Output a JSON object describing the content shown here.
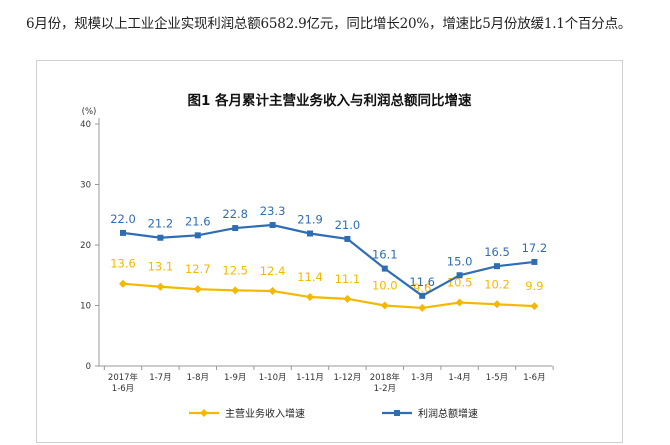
{
  "caption": "6月份，规模以上工业企业实现利润总额6582.9亿元，同比增长20%，增速比5月份放缓1.1个百分点。",
  "chart_data": {
    "type": "line",
    "title": "图1  各月累计主营业务收入与利润总额同比增速",
    "ylabel": "(%)",
    "ylim": [
      0,
      40
    ],
    "yticks": [
      0,
      10,
      20,
      30,
      40
    ],
    "grid": false,
    "legend_position": "bottom",
    "categories": [
      [
        "2017年",
        "1-6月"
      ],
      [
        "1-7月"
      ],
      [
        "1-8月"
      ],
      [
        "1-9月"
      ],
      [
        "1-10月"
      ],
      [
        "1-11月"
      ],
      [
        "1-12月"
      ],
      [
        "2018年",
        "1-2月"
      ],
      [
        "1-3月"
      ],
      [
        "1-4月"
      ],
      [
        "1-5月"
      ],
      [
        "1-6月"
      ]
    ],
    "series": [
      {
        "name": "主营业务收入增速",
        "color": "#F5B800",
        "marker": "diamond",
        "values": [
          13.6,
          13.1,
          12.7,
          12.5,
          12.4,
          11.4,
          11.1,
          10.0,
          9.6,
          10.5,
          10.2,
          9.9
        ],
        "labels": [
          "13.6",
          "13.1",
          "12.7",
          "12.5",
          "12.4",
          "11.4",
          "11.1",
          "10.0",
          "9.6",
          "10.5",
          "10.2",
          "9.9"
        ]
      },
      {
        "name": "利润总额增速",
        "color": "#2E6DB4",
        "marker": "square",
        "values": [
          22.0,
          21.2,
          21.6,
          22.8,
          23.3,
          21.9,
          21.0,
          16.1,
          11.6,
          15.0,
          16.5,
          17.2
        ],
        "labels": [
          "22.0",
          "21.2",
          "21.6",
          "22.8",
          "23.3",
          "21.9",
          "21.0",
          "16.1",
          "11.6",
          "15.0",
          "16.5",
          "17.2"
        ]
      }
    ]
  }
}
